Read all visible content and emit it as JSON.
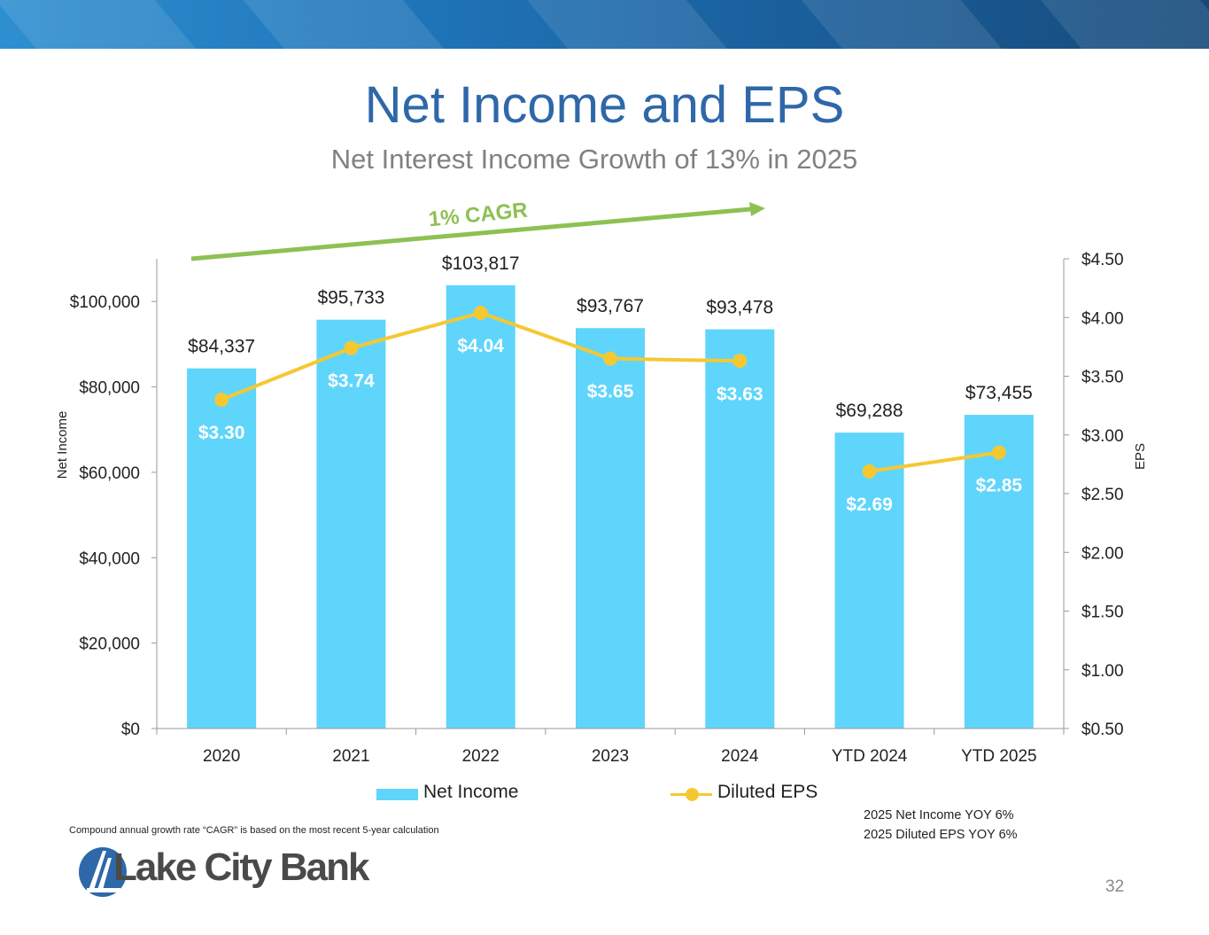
{
  "slide": {
    "title": "Net Income and EPS",
    "subtitle": "Net Interest Income Growth of 13% in 2025",
    "cagr_label": "1% CAGR",
    "footnote": "Compound annual growth rate “CAGR” is based on the most recent 5-year calculation",
    "yoy_net_income": "2025 Net Income YOY  6%",
    "yoy_eps": "2025 Diluted EPS YOY  6%",
    "logo_text": "Lake City Bank",
    "page_number": "32"
  },
  "colors": {
    "bar": "#5fd5fc",
    "line": "#f5c832",
    "title": "#2f68a8",
    "cagr_arrow": "#8dc153",
    "eps_label": "#ffffff"
  },
  "chart_data": {
    "type": "bar",
    "categories": [
      "2020",
      "2021",
      "2022",
      "2023",
      "2024",
      "YTD 2024",
      "YTD 2025"
    ],
    "series": [
      {
        "name": "Net Income",
        "type": "bar",
        "axis": "left",
        "values": [
          84337,
          95733,
          103817,
          93767,
          93478,
          69288,
          73455
        ],
        "labels": [
          "$84,337",
          "$95,733",
          "$103,817",
          "$93,767",
          "$93,478",
          "$69,288",
          "$73,455"
        ]
      },
      {
        "name": "Diluted EPS",
        "type": "line",
        "axis": "right",
        "values": [
          3.3,
          3.74,
          4.04,
          3.65,
          3.63,
          2.69,
          2.85
        ],
        "labels": [
          "$3.30",
          "$3.74",
          "$4.04",
          "$3.65",
          "$3.63",
          "$2.69",
          "$2.85"
        ],
        "segments": [
          [
            0,
            4
          ],
          [
            5,
            6
          ]
        ]
      }
    ],
    "ylabel": "Net Income",
    "y2label": "EPS",
    "ylim": [
      0,
      110000
    ],
    "y2lim": [
      0.5,
      4.5
    ],
    "y_ticks": [
      0,
      20000,
      40000,
      60000,
      80000,
      100000
    ],
    "y_tick_labels": [
      "$0",
      "$20,000",
      "$40,000",
      "$60,000",
      "$80,000",
      "$100,000"
    ],
    "y2_ticks": [
      0.5,
      1.0,
      1.5,
      2.0,
      2.5,
      3.0,
      3.5,
      4.0,
      4.5
    ],
    "y2_tick_labels": [
      "$0.50",
      "$1.00",
      "$1.50",
      "$2.00",
      "$2.50",
      "$3.00",
      "$3.50",
      "$4.00",
      "$4.50"
    ],
    "legend": [
      "Net Income",
      "Diluted EPS"
    ],
    "legend_position": "bottom",
    "grid": false
  }
}
